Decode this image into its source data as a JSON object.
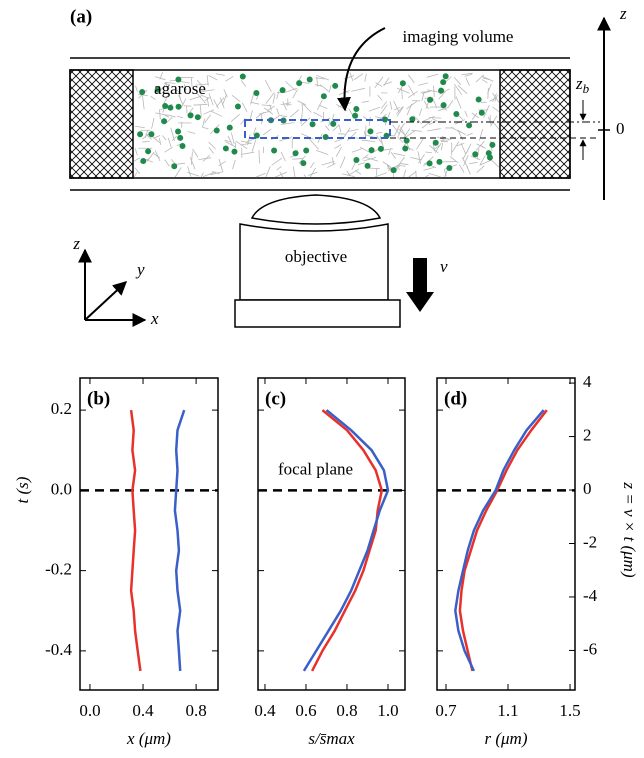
{
  "diagram": {
    "label": "(a)",
    "imaging_volume": "imaging volume",
    "agarose": "agarose",
    "zb": {
      "main": "z",
      "sub": "b"
    },
    "zero": "0",
    "z_axis": "z",
    "objective": "objective",
    "velocity": "v",
    "axes": {
      "z": "z",
      "y": "y",
      "x": "x"
    }
  },
  "chart_data": [
    {
      "type": "line",
      "panel": "(b)",
      "xlabel": "x (μm)",
      "ylabel": "t (s)",
      "xlim": [
        -0.075,
        0.965
      ],
      "xticks": [
        {
          "value": 0,
          "label": "0.0"
        },
        0.4,
        0.8
      ],
      "ylim": [
        -0.4975,
        0.28
      ],
      "yticks": [
        0.2,
        {
          "value": 0,
          "label": "0.0"
        },
        -0.2,
        -0.4
      ],
      "hline": 0,
      "y": [
        0.2,
        0.15,
        0.1,
        0.05,
        0,
        -0.05,
        -0.1,
        -0.15,
        -0.2,
        -0.25,
        -0.3,
        -0.35,
        -0.4,
        -0.45
      ],
      "series": [
        {
          "color": "#e8312a",
          "values": [
            0.31,
            0.33,
            0.32,
            0.34,
            0.32,
            0.33,
            0.34,
            0.33,
            0.32,
            0.31,
            0.33,
            0.34,
            0.36,
            0.38
          ]
        },
        {
          "color": "#3a5fc8",
          "values": [
            0.71,
            0.66,
            0.65,
            0.66,
            0.65,
            0.64,
            0.66,
            0.67,
            0.65,
            0.66,
            0.68,
            0.66,
            0.67,
            0.68
          ]
        }
      ]
    },
    {
      "type": "line",
      "panel": "(c)",
      "xlabel": "s/s̄max",
      "annotation": "focal plane",
      "xlim": [
        0.366,
        1.083
      ],
      "xticks": [
        0.4,
        0.6,
        0.8,
        {
          "value": 1,
          "label": "1.0"
        }
      ],
      "ylim": [
        -0.4975,
        0.28
      ],
      "hline": 0,
      "y": [
        0.2,
        0.15,
        0.1,
        0.05,
        0,
        -0.05,
        -0.1,
        -0.15,
        -0.2,
        -0.25,
        -0.3,
        -0.35,
        -0.4,
        -0.45
      ],
      "series": [
        {
          "color": "#e8312a",
          "values": [
            0.68,
            0.8,
            0.88,
            0.94,
            0.97,
            0.95,
            0.94,
            0.91,
            0.88,
            0.84,
            0.79,
            0.74,
            0.68,
            0.63
          ]
        },
        {
          "color": "#3a5fc8",
          "values": [
            0.7,
            0.82,
            0.92,
            0.98,
            1.0,
            0.96,
            0.93,
            0.9,
            0.86,
            0.82,
            0.77,
            0.71,
            0.65,
            0.59
          ]
        }
      ]
    },
    {
      "type": "line",
      "panel": "(d)",
      "xlabel": "r (μm)",
      "y2label": "z = v × t (μm)",
      "xlim": [
        0.642,
        1.532
      ],
      "xticks": [
        0.7,
        1.1,
        1.5
      ],
      "ylim": [
        -0.4975,
        0.28
      ],
      "hline": 0,
      "y2lim": [
        -7.48,
        4.19
      ],
      "y2ticks": [
        4,
        2,
        0,
        -2,
        -4,
        -6
      ],
      "y": [
        0.2,
        0.15,
        0.1,
        0.05,
        0,
        -0.05,
        -0.1,
        -0.15,
        -0.2,
        -0.25,
        -0.3,
        -0.35,
        -0.4,
        -0.45
      ],
      "series": [
        {
          "color": "#e8312a",
          "values": [
            1.35,
            1.25,
            1.16,
            1.09,
            1.03,
            0.96,
            0.9,
            0.86,
            0.82,
            0.8,
            0.79,
            0.81,
            0.84,
            0.87
          ]
        },
        {
          "color": "#3a5fc8",
          "values": [
            1.33,
            1.22,
            1.14,
            1.07,
            1.02,
            0.94,
            0.88,
            0.84,
            0.81,
            0.78,
            0.76,
            0.78,
            0.82,
            0.88
          ]
        }
      ]
    }
  ]
}
